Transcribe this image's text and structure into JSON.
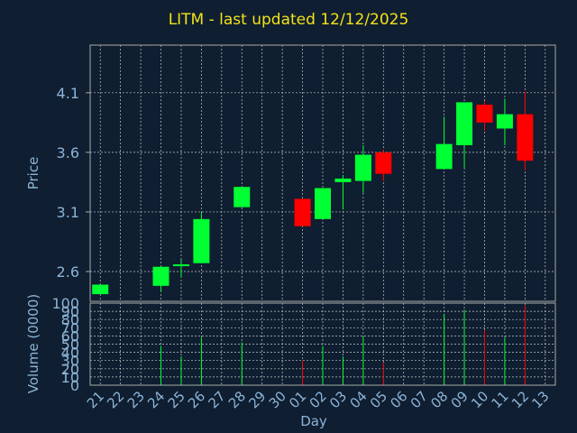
{
  "chart_data": {
    "type": "candlestick",
    "title": "LITM - last updated 12/12/2025",
    "xlabel": "Day",
    "ylabel": "Price",
    "volume_label": "Volume (0000)",
    "x_labels": [
      "21",
      "22",
      "23",
      "24",
      "25",
      "26",
      "27",
      "28",
      "29",
      "30",
      "01",
      "02",
      "03",
      "04",
      "05",
      "06",
      "07",
      "08",
      "09",
      "10",
      "11",
      "12",
      "13"
    ],
    "price_ticks": [
      2.6,
      3.1,
      3.6,
      4.1
    ],
    "ylim": [
      2.35,
      4.5
    ],
    "volume_ticks": [
      0,
      10,
      20,
      30,
      40,
      50,
      60,
      70,
      80,
      90,
      100
    ],
    "volume_ylim": [
      0,
      100
    ],
    "grid": true,
    "colors": {
      "up": "#00ff33",
      "down": "#ff0000",
      "background": "#0f1e30",
      "axis_text": "#8cb4d8",
      "title": "#f2e21a"
    },
    "candles": [
      {
        "day": "21",
        "open": 2.41,
        "close": 2.49,
        "high": 2.49,
        "low": 2.41
      },
      {
        "day": "24",
        "open": 2.48,
        "close": 2.64,
        "high": 2.64,
        "low": 2.43,
        "volume": 48
      },
      {
        "day": "25",
        "open": 2.65,
        "close": 2.66,
        "high": 2.7,
        "low": 2.55,
        "volume": 35
      },
      {
        "day": "26",
        "open": 2.67,
        "close": 3.04,
        "high": 3.1,
        "low": 2.67,
        "volume": 58
      },
      {
        "day": "28",
        "open": 3.14,
        "close": 3.31,
        "high": 3.31,
        "low": 3.14,
        "volume": 52
      },
      {
        "day": "01",
        "open": 3.21,
        "close": 2.98,
        "high": 3.21,
        "low": 2.98,
        "volume": 30
      },
      {
        "day": "02",
        "open": 3.04,
        "close": 3.3,
        "high": 3.3,
        "low": 3.04,
        "volume": 48
      },
      {
        "day": "03",
        "open": 3.35,
        "close": 3.38,
        "high": 3.41,
        "low": 3.12,
        "volume": 35
      },
      {
        "day": "04",
        "open": 3.36,
        "close": 3.58,
        "high": 3.66,
        "low": 3.26,
        "volume": 60
      },
      {
        "day": "05",
        "open": 3.6,
        "close": 3.42,
        "high": 3.62,
        "low": 3.36,
        "volume": 27
      },
      {
        "day": "08",
        "open": 3.46,
        "close": 3.67,
        "high": 3.9,
        "low": 3.46,
        "volume": 87
      },
      {
        "day": "09",
        "open": 3.66,
        "close": 4.02,
        "high": 4.02,
        "low": 3.47,
        "volume": 92
      },
      {
        "day": "10",
        "open": 4.0,
        "close": 3.85,
        "high": 4.03,
        "low": 3.78,
        "volume": 67
      },
      {
        "day": "11",
        "open": 3.8,
        "close": 3.92,
        "high": 4.05,
        "low": 3.66,
        "volume": 58
      },
      {
        "day": "12",
        "open": 3.92,
        "close": 3.53,
        "high": 4.11,
        "low": 3.45,
        "volume": 97
      }
    ]
  }
}
